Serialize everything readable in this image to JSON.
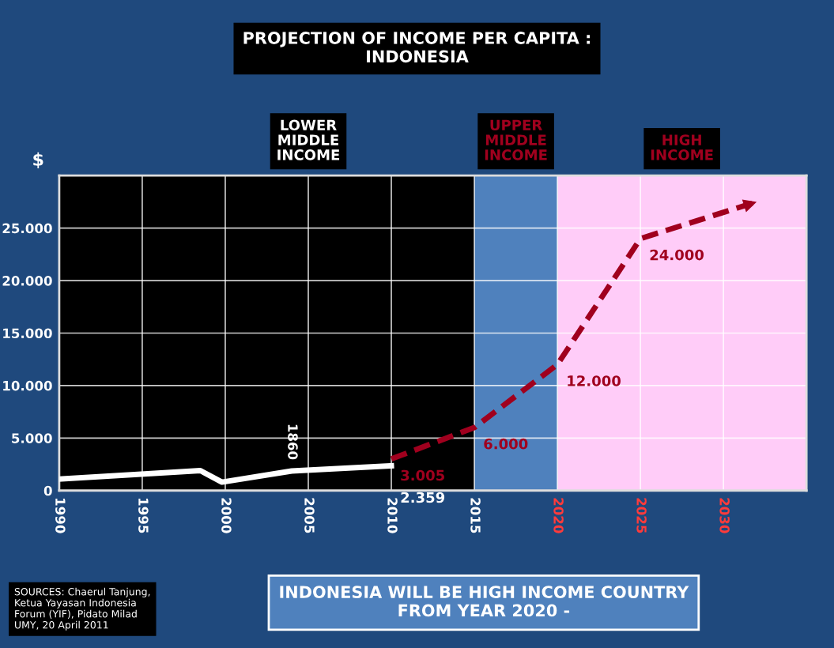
{
  "chart_data": {
    "type": "line",
    "title": "PROJECTION OF INCOME PER CAPITA :\nINDONESIA",
    "ylabel": "$",
    "series": [
      {
        "color": "#ffffff",
        "line_style": "solid",
        "x": [
          1990,
          1998.5,
          1999.8,
          2004,
          2010
        ],
        "values": [
          1100,
          1900,
          800,
          1860,
          2359
        ],
        "value_labels": [
          null,
          null,
          null,
          "1860",
          "2.359"
        ]
      },
      {
        "color": "#a0001e",
        "line_style": "dashed",
        "x": [
          2010,
          2015,
          2020,
          2025,
          2032
        ],
        "values": [
          3005,
          6000,
          12000,
          24000,
          27500
        ],
        "value_labels": [
          "3.005",
          "6.000",
          "12.000",
          "24.000",
          null
        ]
      }
    ],
    "xlim": [
      1990,
      2035
    ],
    "xticks": [
      1990,
      1995,
      2000,
      2005,
      2010,
      2015,
      2020,
      2025,
      2030
    ],
    "ylim": [
      0,
      30000
    ],
    "yticks": [
      {
        "value": 0,
        "label": "0"
      },
      {
        "value": 5000,
        "label": "5.000"
      },
      {
        "value": 10000,
        "label": "10.000"
      },
      {
        "value": 15000,
        "label": "15.000"
      },
      {
        "value": 20000,
        "label": "20.000"
      },
      {
        "value": 25000,
        "label": "25.000"
      }
    ],
    "bands": [
      {
        "axis": "x",
        "from": 1990,
        "to": 2015,
        "label": "LOWER\nMIDDLE\nINCOME",
        "color": "#000000"
      },
      {
        "axis": "x",
        "from": 2015,
        "to": 2020,
        "label": "UPPER\nMIDDLE\nINCOME",
        "color": "#4f81bd"
      },
      {
        "axis": "x",
        "from": 2020,
        "to": 2035,
        "label": "HIGH\nINCOME",
        "color": "#ffccf8"
      }
    ],
    "grid": true,
    "marker": "none",
    "annotations": [
      "SOURCES: Chaerul Tanjung,\nKetua Yayasan Indonesia\nForum (YIF), Pidato Milad\nUMY, 20 April 2011",
      "INDONESIA WILL BE HIGH INCOME COUNTRY\nFROM YEAR 2020 -"
    ]
  }
}
